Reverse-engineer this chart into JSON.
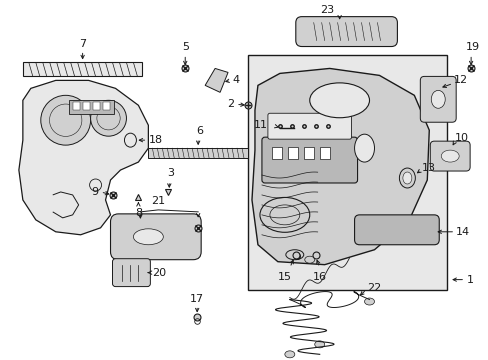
{
  "bg_color": "#ffffff",
  "fig_width": 4.89,
  "fig_height": 3.6,
  "dpi": 100,
  "line_color": "#1a1a1a",
  "light_fill": "#e8e8e8",
  "mid_fill": "#d0d0d0",
  "dark_fill": "#b8b8b8",
  "font_size_id": 8
}
